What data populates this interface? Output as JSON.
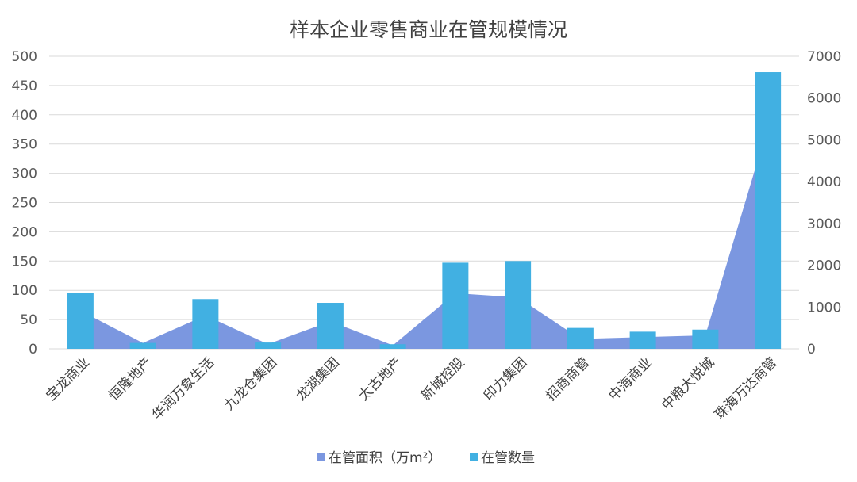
{
  "chart_data": {
    "type": "bar",
    "title": "样本企业零售商业在管规模情况",
    "categories": [
      "宝龙商业",
      "恒隆地产",
      "华润万象生活",
      "九龙仓集团",
      "龙湖集团",
      "太古地产",
      "新城控股",
      "印力集团",
      "招商商管",
      "中海商业",
      "中粮大悦城",
      "珠海万达商管"
    ],
    "series": [
      {
        "name": "在管面积（万m²）",
        "type": "area",
        "axis": "left",
        "color": "#7b97e0",
        "values": [
          65,
          10,
          57,
          8,
          47,
          6,
          95,
          88,
          17,
          20,
          23,
          380
        ]
      },
      {
        "name": "在管数量",
        "type": "bar",
        "axis": "right",
        "color": "#41b0e2",
        "values": [
          1330,
          140,
          1190,
          150,
          1100,
          110,
          2060,
          2100,
          500,
          410,
          460,
          6620
        ]
      }
    ],
    "y_left": {
      "min": 0,
      "max": 500,
      "ticks": [
        "0",
        "50",
        "100",
        "150",
        "200",
        "250",
        "300",
        "350",
        "400",
        "450",
        "500"
      ]
    },
    "y_right": {
      "min": 0,
      "max": 7000,
      "ticks": [
        "0",
        "1000",
        "2000",
        "3000",
        "4000",
        "5000",
        "6000",
        "7000"
      ]
    },
    "grid": true,
    "legend": "bottom"
  }
}
